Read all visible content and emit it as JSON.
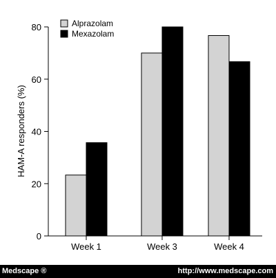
{
  "chart_data": {
    "type": "bar",
    "categories": [
      "Week 1",
      "Week 3",
      "Week 4"
    ],
    "series": [
      {
        "name": "Alprazolam",
        "values": [
          23.3,
          70.0,
          76.7
        ],
        "color": "#d3d3d3"
      },
      {
        "name": "Mexazolam",
        "values": [
          35.7,
          80.0,
          66.7
        ],
        "color": "#000000"
      }
    ],
    "title": "",
    "xlabel": "",
    "ylabel": "HAM-A responders (%)",
    "ylim": [
      0,
      80
    ],
    "yticks": [
      "0",
      "20",
      "40",
      "60",
      "80"
    ],
    "grid": false,
    "legend_position": "top-left"
  },
  "footer": {
    "left": "Medscape ®",
    "right": "http://www.medscape.com"
  }
}
